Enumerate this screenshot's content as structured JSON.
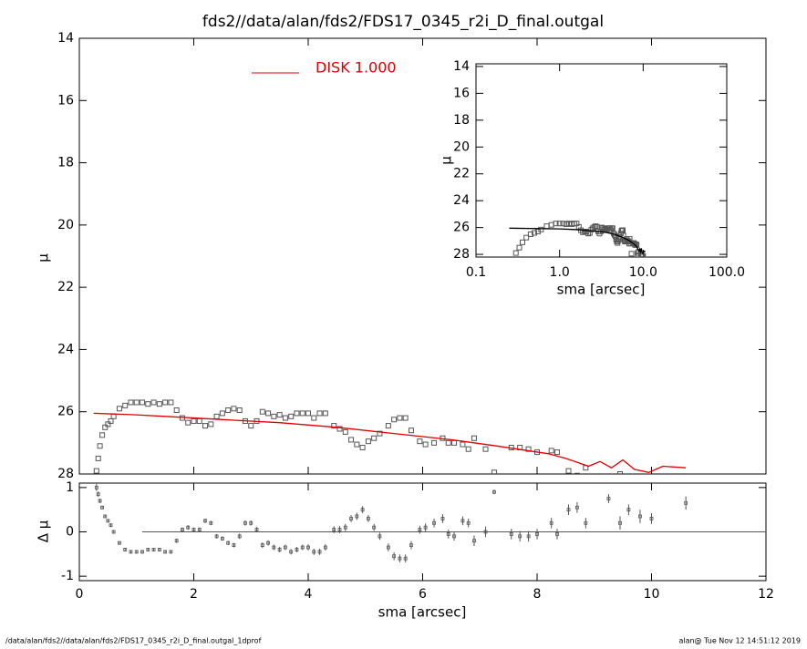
{
  "title": "fds2//data/alan/fds2/FDS17_0345_r2i_D_final.outgal",
  "footer_left": "/data/alan/fds2//data/alan/fds2/FDS17_0345_r2i_D_final.outgal_1dprof",
  "footer_right": "alan@  Tue Nov 12 14:51:12 2019",
  "chart_data": [
    {
      "type": "scatter",
      "ylabel": "μ",
      "xlim": [
        0,
        12
      ],
      "xticks": [
        0,
        2,
        4,
        6,
        8,
        10,
        12
      ],
      "ylim": [
        28,
        14
      ],
      "yticks": [
        14,
        16,
        18,
        20,
        22,
        24,
        26,
        28
      ],
      "x": [
        0.3,
        0.33,
        0.36,
        0.4,
        0.45,
        0.5,
        0.55,
        0.6,
        0.7,
        0.8,
        0.9,
        1.0,
        1.1,
        1.2,
        1.3,
        1.4,
        1.5,
        1.6,
        1.7,
        1.8,
        1.9,
        2.0,
        2.1,
        2.2,
        2.3,
        2.4,
        2.5,
        2.6,
        2.7,
        2.8,
        2.9,
        3.0,
        3.1,
        3.2,
        3.3,
        3.4,
        3.5,
        3.6,
        3.7,
        3.8,
        3.9,
        4.0,
        4.1,
        4.2,
        4.3,
        4.45,
        4.55,
        4.65,
        4.75,
        4.85,
        4.95,
        5.05,
        5.15,
        5.25,
        5.4,
        5.5,
        5.6,
        5.7,
        5.8,
        5.95,
        6.05,
        6.2,
        6.35,
        6.45,
        6.55,
        6.7,
        6.8,
        6.9,
        7.1,
        7.25,
        7.55,
        7.7,
        7.85,
        8.0,
        8.25,
        8.35,
        8.55,
        8.7,
        8.85,
        9.25,
        9.45,
        9.6,
        9.8,
        10.0,
        10.6
      ],
      "series": [
        {
          "color": "#555555",
          "marker": "square",
          "values": [
            27.9,
            27.5,
            27.1,
            26.75,
            26.5,
            26.4,
            26.3,
            26.15,
            25.9,
            25.8,
            25.7,
            25.7,
            25.7,
            25.75,
            25.7,
            25.75,
            25.7,
            25.7,
            25.95,
            26.2,
            26.35,
            26.3,
            26.3,
            26.45,
            26.4,
            26.15,
            26.05,
            25.95,
            25.9,
            25.95,
            26.3,
            26.45,
            26.3,
            26.0,
            26.05,
            26.15,
            26.1,
            26.2,
            26.15,
            26.05,
            26.05,
            26.05,
            26.2,
            26.05,
            26.05,
            26.45,
            26.55,
            26.65,
            26.9,
            27.05,
            27.15,
            26.95,
            26.85,
            26.7,
            26.45,
            26.25,
            26.2,
            26.2,
            26.6,
            26.95,
            27.05,
            27.0,
            26.85,
            27.0,
            27.0,
            27.05,
            27.2,
            26.85,
            27.2,
            27.95,
            27.15,
            27.15,
            27.2,
            27.3,
            27.25,
            27.3,
            27.9,
            28.05,
            27.8,
            28.35,
            28.0,
            28.1,
            28.1,
            28.15,
            28.4
          ]
        },
        {
          "name": "DISK  1.000",
          "color": "#e00000",
          "marker": "line",
          "x": [
            0.25,
            1.0,
            1.5,
            2.5,
            3.5,
            4.5,
            5.5,
            6.5,
            7.3,
            8.2,
            8.5,
            8.9,
            9.1,
            9.3,
            9.5,
            9.7,
            9.95,
            10.2,
            10.6
          ],
          "values": [
            26.05,
            26.1,
            26.15,
            26.25,
            26.35,
            26.5,
            26.7,
            26.9,
            27.1,
            27.35,
            27.5,
            27.75,
            27.6,
            27.8,
            27.55,
            27.85,
            27.95,
            27.75,
            27.8
          ]
        }
      ]
    },
    {
      "type": "errorbar",
      "ylabel": "Δ μ",
      "xlabel": "sma [arcsec]",
      "xlim": [
        0,
        12
      ],
      "xticks": [
        0,
        2,
        4,
        6,
        8,
        10,
        12
      ],
      "ylim": [
        -1.1,
        1.1
      ],
      "yticks": [
        -1,
        0,
        1
      ],
      "reference_line": {
        "value": 0,
        "x": [
          1.1,
          12
        ]
      },
      "series": [
        {
          "color": "#555555",
          "values": [
            1.0,
            0.85,
            0.7,
            0.55,
            0.35,
            0.25,
            0.15,
            0.0,
            -0.25,
            -0.4,
            -0.45,
            -0.45,
            -0.45,
            -0.4,
            -0.4,
            -0.4,
            -0.45,
            -0.45,
            -0.2,
            0.05,
            0.1,
            0.05,
            0.05,
            0.25,
            0.2,
            -0.1,
            -0.15,
            -0.25,
            -0.3,
            -0.1,
            0.2,
            0.2,
            0.05,
            -0.3,
            -0.25,
            -0.35,
            -0.4,
            -0.35,
            -0.45,
            -0.4,
            -0.35,
            -0.35,
            -0.45,
            -0.45,
            -0.35,
            0.05,
            0.05,
            0.1,
            0.3,
            0.35,
            0.5,
            0.3,
            0.1,
            -0.1,
            -0.35,
            -0.55,
            -0.6,
            -0.6,
            -0.3,
            0.05,
            0.1,
            0.2,
            0.3,
            -0.05,
            -0.1,
            0.25,
            0.2,
            -0.2,
            0.0,
            0.9,
            -0.05,
            -0.1,
            -0.1,
            -0.05,
            0.2,
            -0.05,
            0.5,
            0.55,
            0.2,
            0.75,
            0.2,
            0.5,
            0.35,
            0.3,
            0.65
          ],
          "errors": [
            0.08,
            0.06,
            0.05,
            0.04,
            0.04,
            0.04,
            0.04,
            0.04,
            0.04,
            0.04,
            0.04,
            0.04,
            0.04,
            0.04,
            0.04,
            0.04,
            0.04,
            0.04,
            0.05,
            0.05,
            0.05,
            0.05,
            0.05,
            0.05,
            0.05,
            0.05,
            0.05,
            0.05,
            0.05,
            0.06,
            0.06,
            0.06,
            0.06,
            0.06,
            0.06,
            0.06,
            0.06,
            0.06,
            0.06,
            0.06,
            0.06,
            0.07,
            0.07,
            0.07,
            0.07,
            0.08,
            0.08,
            0.08,
            0.08,
            0.08,
            0.08,
            0.08,
            0.08,
            0.08,
            0.09,
            0.09,
            0.09,
            0.09,
            0.09,
            0.09,
            0.09,
            0.1,
            0.1,
            0.1,
            0.1,
            0.1,
            0.1,
            0.12,
            0.12,
            0.05,
            0.12,
            0.12,
            0.12,
            0.12,
            0.12,
            0.12,
            0.12,
            0.12,
            0.12,
            0.1,
            0.15,
            0.12,
            0.15,
            0.12,
            0.15
          ]
        }
      ]
    },
    {
      "type": "scatter",
      "ylabel": "μ",
      "xlabel": "sma [arcsec]",
      "xscale": "log",
      "model_color": "#000000",
      "xlim": [
        0.1,
        100
      ],
      "xticks": [
        {
          "value": 0.1,
          "label": "0.1"
        },
        {
          "value": 1,
          "label": "1.0"
        },
        {
          "value": 10,
          "label": "10.0"
        },
        {
          "value": 100,
          "label": "100.0"
        }
      ],
      "ylim": [
        28.2,
        13.8
      ],
      "yticks": [
        14,
        16,
        18,
        20,
        22,
        24,
        26,
        28
      ]
    }
  ]
}
